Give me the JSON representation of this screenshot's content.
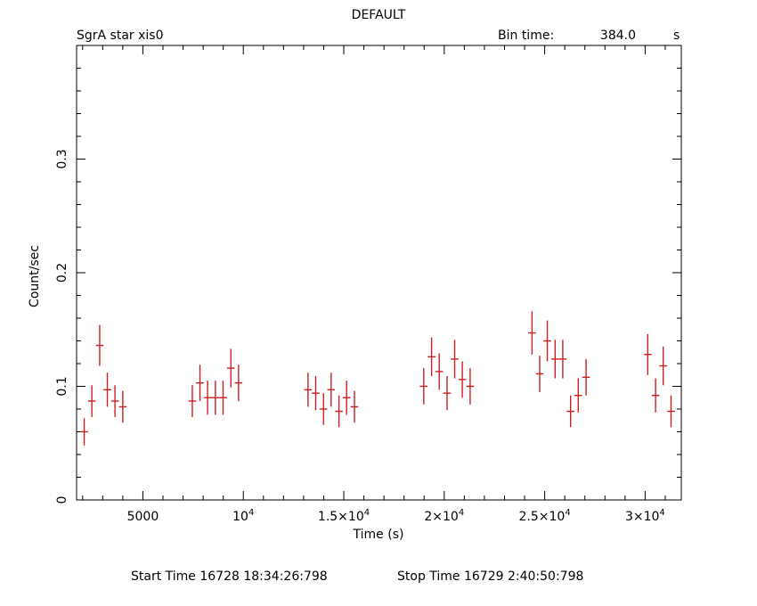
{
  "header": {
    "title": "DEFAULT",
    "source": "SgrA star xis0",
    "bin_label": "Bin time:",
    "bin_value": "384.0",
    "bin_unit": "s"
  },
  "footer": {
    "start": "Start Time 16728 18:34:26:798",
    "stop": "Stop Time 16729  2:40:50:798"
  },
  "chart_data": {
    "type": "scatter",
    "title": "DEFAULT",
    "xlabel": "Time (s)",
    "ylabel": "Count/sec",
    "xlim": [
      1700,
      31800
    ],
    "ylim": [
      0,
      0.4
    ],
    "grid": false,
    "xticks": [
      {
        "value": 5000,
        "mantissa": "5000",
        "exp": ""
      },
      {
        "value": 10000,
        "mantissa": "10",
        "exp": "4"
      },
      {
        "value": 15000,
        "mantissa": "1.5×10",
        "exp": "4"
      },
      {
        "value": 20000,
        "mantissa": "2×10",
        "exp": "4"
      },
      {
        "value": 25000,
        "mantissa": "2.5×10",
        "exp": "4"
      },
      {
        "value": 30000,
        "mantissa": "3×10",
        "exp": "4"
      }
    ],
    "yticks": [
      {
        "value": 0,
        "label": "0"
      },
      {
        "value": 0.1,
        "label": "0.1"
      },
      {
        "value": 0.2,
        "label": "0.2"
      },
      {
        "value": 0.3,
        "label": "0.3"
      }
    ],
    "xerr": 192,
    "series": [
      {
        "color": "#cc1f1f",
        "points": [
          {
            "x": 2080,
            "y": 0.06,
            "yerr": 0.012
          },
          {
            "x": 2460,
            "y": 0.087,
            "yerr": 0.014
          },
          {
            "x": 2850,
            "y": 0.136,
            "yerr": 0.018
          },
          {
            "x": 3230,
            "y": 0.097,
            "yerr": 0.015
          },
          {
            "x": 3610,
            "y": 0.087,
            "yerr": 0.014
          },
          {
            "x": 4000,
            "y": 0.082,
            "yerr": 0.014
          },
          {
            "x": 7460,
            "y": 0.087,
            "yerr": 0.014
          },
          {
            "x": 7840,
            "y": 0.103,
            "yerr": 0.016
          },
          {
            "x": 8220,
            "y": 0.09,
            "yerr": 0.015
          },
          {
            "x": 8610,
            "y": 0.09,
            "yerr": 0.015
          },
          {
            "x": 8990,
            "y": 0.09,
            "yerr": 0.015
          },
          {
            "x": 9380,
            "y": 0.116,
            "yerr": 0.017
          },
          {
            "x": 9760,
            "y": 0.103,
            "yerr": 0.016
          },
          {
            "x": 13220,
            "y": 0.097,
            "yerr": 0.015
          },
          {
            "x": 13600,
            "y": 0.094,
            "yerr": 0.015
          },
          {
            "x": 13990,
            "y": 0.08,
            "yerr": 0.014
          },
          {
            "x": 14370,
            "y": 0.097,
            "yerr": 0.015
          },
          {
            "x": 14760,
            "y": 0.078,
            "yerr": 0.014
          },
          {
            "x": 15140,
            "y": 0.09,
            "yerr": 0.015
          },
          {
            "x": 15530,
            "y": 0.082,
            "yerr": 0.014
          },
          {
            "x": 18980,
            "y": 0.1,
            "yerr": 0.016
          },
          {
            "x": 19370,
            "y": 0.126,
            "yerr": 0.017
          },
          {
            "x": 19750,
            "y": 0.113,
            "yerr": 0.016
          },
          {
            "x": 20140,
            "y": 0.094,
            "yerr": 0.015
          },
          {
            "x": 20520,
            "y": 0.124,
            "yerr": 0.017
          },
          {
            "x": 20900,
            "y": 0.106,
            "yerr": 0.016
          },
          {
            "x": 21290,
            "y": 0.1,
            "yerr": 0.016
          },
          {
            "x": 24370,
            "y": 0.147,
            "yerr": 0.019
          },
          {
            "x": 24750,
            "y": 0.111,
            "yerr": 0.016
          },
          {
            "x": 25130,
            "y": 0.14,
            "yerr": 0.018
          },
          {
            "x": 25520,
            "y": 0.124,
            "yerr": 0.017
          },
          {
            "x": 25900,
            "y": 0.124,
            "yerr": 0.017
          },
          {
            "x": 26290,
            "y": 0.078,
            "yerr": 0.014
          },
          {
            "x": 26670,
            "y": 0.092,
            "yerr": 0.015
          },
          {
            "x": 27060,
            "y": 0.108,
            "yerr": 0.016
          },
          {
            "x": 30130,
            "y": 0.128,
            "yerr": 0.018
          },
          {
            "x": 30520,
            "y": 0.092,
            "yerr": 0.015
          },
          {
            "x": 30900,
            "y": 0.118,
            "yerr": 0.017
          },
          {
            "x": 31290,
            "y": 0.078,
            "yerr": 0.014
          }
        ]
      }
    ]
  }
}
